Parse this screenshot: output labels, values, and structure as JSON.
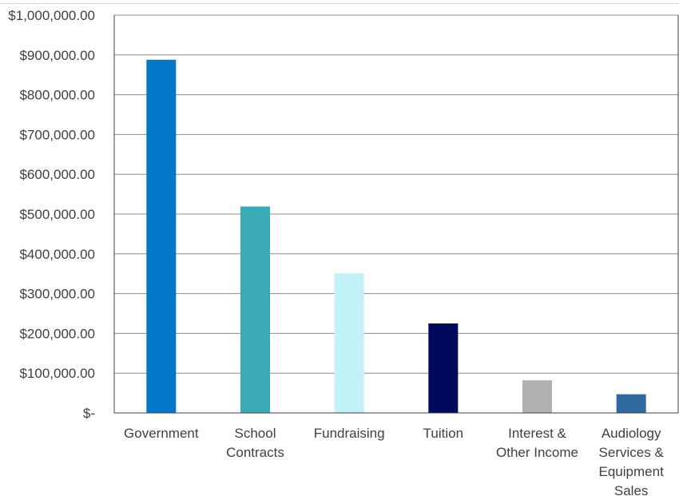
{
  "chart_data": {
    "type": "bar",
    "categories": [
      [
        "Government"
      ],
      [
        "School",
        "Contracts"
      ],
      [
        "Fundraising"
      ],
      [
        "Tuition"
      ],
      [
        "Interest &",
        "Other Income"
      ],
      [
        "Audiology",
        "Services &",
        "Equipment",
        "Sales"
      ]
    ],
    "values": [
      888000,
      519000,
      351000,
      225000,
      82000,
      47000
    ],
    "bar_colors": [
      "#0277c7",
      "#3aaab5",
      "#c2f1f7",
      "#000a5c",
      "#b0b0b0",
      "#2e6a9e"
    ],
    "y_tick_values": [
      0,
      100000,
      200000,
      300000,
      400000,
      500000,
      600000,
      700000,
      800000,
      900000,
      1000000
    ],
    "y_tick_labels": [
      "$-",
      "$100,000.00",
      "$200,000.00",
      "$300,000.00",
      "$400,000.00",
      "$500,000.00",
      "$600,000.00",
      "$700,000.00",
      "$800,000.00",
      "$900,000.00",
      "$1,000,000.00"
    ],
    "ylim": [
      0,
      1000000
    ],
    "grid": true,
    "title": "",
    "xlabel": "",
    "ylabel": ""
  }
}
